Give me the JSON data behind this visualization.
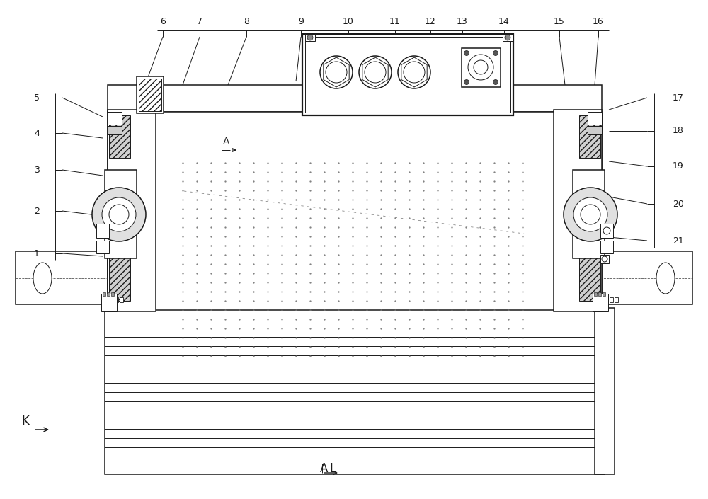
{
  "bg_color": "#ffffff",
  "line_color": "#1a1a1a",
  "figsize": [
    10.0,
    7.05
  ],
  "dpi": 100,
  "top_labels": [
    [
      "6",
      230,
      30
    ],
    [
      "7",
      282,
      30
    ],
    [
      "8",
      348,
      30
    ],
    [
      "9",
      425,
      30
    ],
    [
      "10",
      492,
      30
    ],
    [
      "11",
      558,
      30
    ],
    [
      "12",
      608,
      30
    ],
    [
      "13",
      653,
      30
    ],
    [
      "14",
      712,
      30
    ],
    [
      "15",
      790,
      30
    ],
    [
      "16",
      845,
      30
    ]
  ],
  "left_labels": [
    [
      "5",
      52,
      138
    ],
    [
      "4",
      52,
      188
    ],
    [
      "3",
      52,
      240
    ],
    [
      "2",
      52,
      298
    ],
    [
      "1",
      52,
      358
    ]
  ],
  "right_labels": [
    [
      "17",
      958,
      138
    ],
    [
      "18",
      958,
      185
    ],
    [
      "19",
      958,
      235
    ],
    [
      "20",
      958,
      288
    ],
    [
      "21",
      958,
      340
    ]
  ]
}
